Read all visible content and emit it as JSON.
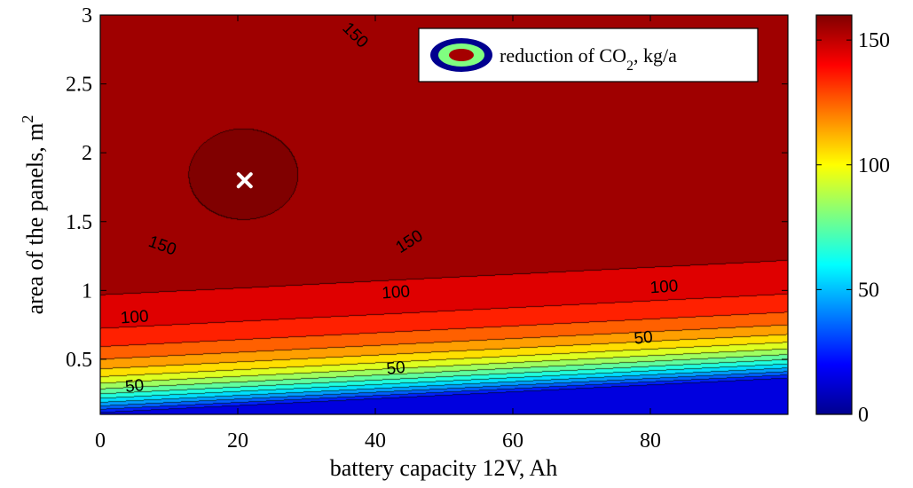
{
  "chart_data": {
    "type": "heatmap",
    "subtype": "filled-contour",
    "xlabel": "battery capacity 12V, Ah",
    "ylabel_main": "area of the panels, m",
    "ylabel_sup": "2",
    "xlim": [
      0,
      100
    ],
    "ylim": [
      0.1,
      3
    ],
    "xticks": [
      "0",
      "20",
      "40",
      "60",
      "80"
    ],
    "xtick_values": [
      0,
      20,
      40,
      60,
      80
    ],
    "yticks": [
      "0.5",
      "1",
      "1.5",
      "2",
      "2.5",
      "3"
    ],
    "ytick_values": [
      0.5,
      1,
      1.5,
      2,
      2.5,
      3
    ],
    "colorbar": {
      "range": [
        0,
        160
      ],
      "ticks": [
        "0",
        "50",
        "100",
        "150"
      ],
      "tick_values": [
        0,
        50,
        100,
        150
      ],
      "colormap": "jet"
    },
    "contour_labels": [
      {
        "text": "150",
        "x": 37,
        "y": 2.85,
        "rot": 45
      },
      {
        "text": "150",
        "x": 9,
        "y": 1.32,
        "rot": 20
      },
      {
        "text": "150",
        "x": 45,
        "y": 1.35,
        "rot": -32
      },
      {
        "text": "100",
        "x": 43,
        "y": 0.98,
        "rot": -4
      },
      {
        "text": "100",
        "x": 82,
        "y": 1.02,
        "rot": -4
      },
      {
        "text": "100",
        "x": 5,
        "y": 0.8,
        "rot": -4
      },
      {
        "text": "50",
        "x": 43,
        "y": 0.43,
        "rot": -6
      },
      {
        "text": "50",
        "x": 79,
        "y": 0.65,
        "rot": -6
      },
      {
        "text": "50",
        "x": 5,
        "y": 0.3,
        "rot": -6
      }
    ],
    "optimum": {
      "x": 21,
      "y": 1.8,
      "value": 160,
      "marker": "x"
    },
    "legend": {
      "label_main": "reduction of CO",
      "label_sub": "2",
      "label_tail": ", kg/a",
      "placement": "top-right"
    }
  }
}
